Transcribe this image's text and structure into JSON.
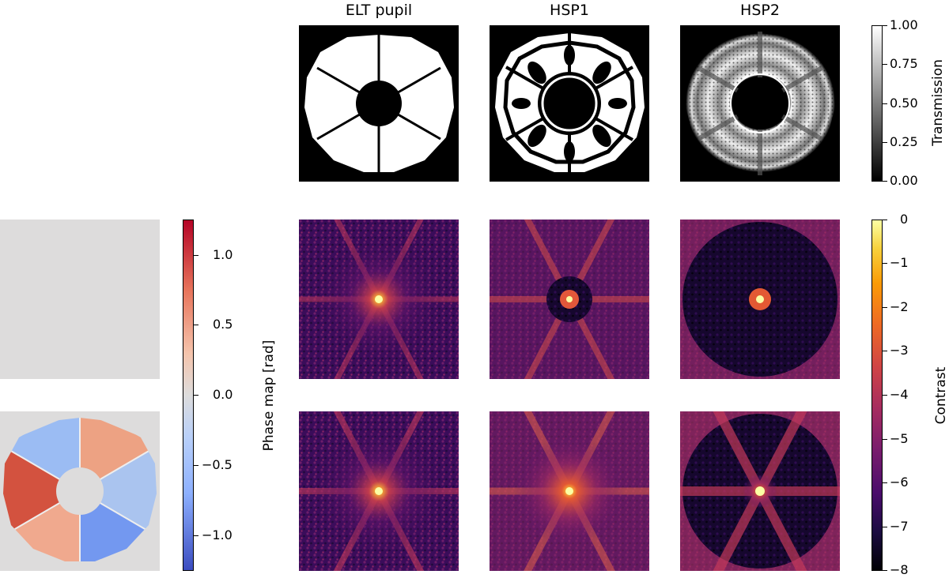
{
  "columns": [
    "ELT pupil",
    "HSP1",
    "HSP2"
  ],
  "transmission_colorbar": {
    "label": "Transmission",
    "ticks": [
      "1.00",
      "0.75",
      "0.50",
      "0.25",
      "0.00"
    ],
    "range": [
      0,
      1
    ],
    "colormap": "gray"
  },
  "phase_colorbar": {
    "label": "Phase map [rad]",
    "ticks": [
      "1.0",
      "0.5",
      "0.0",
      "−0.5",
      "−1.0"
    ],
    "range": [
      -1.2,
      1.2
    ],
    "colormap": "coolwarm"
  },
  "contrast_colorbar": {
    "label": "Contrast",
    "ticks": [
      "0",
      "−1",
      "−2",
      "−3",
      "−4",
      "−5",
      "−6",
      "−7",
      "−8"
    ],
    "range": [
      -8,
      0
    ],
    "colormap": "inferno"
  },
  "colors": {
    "background": "#ffffff",
    "flat_phase": "#dddcdc",
    "coolwarm_red": "#b40426",
    "coolwarm_blue": "#3b4cc0",
    "inferno_dark": "#000004",
    "inferno_bright": "#fcffa4"
  }
}
